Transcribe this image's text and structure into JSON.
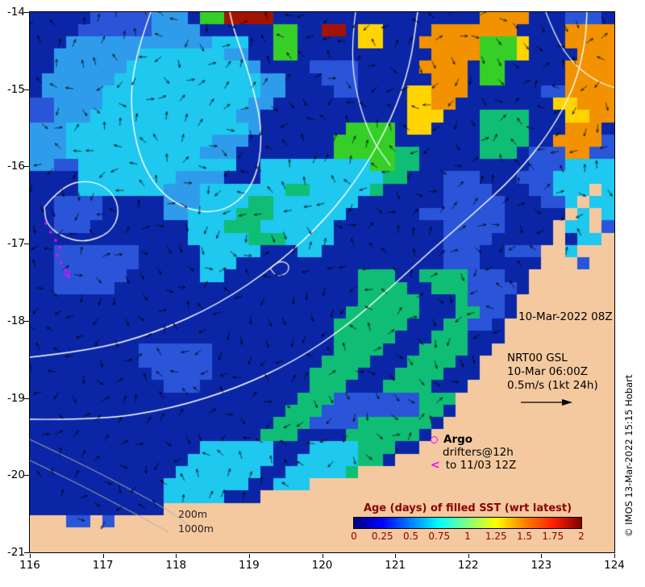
{
  "axes": {
    "x_tick_labels": [
      "116",
      "117",
      "118",
      "119",
      "120",
      "121",
      "122",
      "123",
      "124"
    ],
    "y_tick_labels": [
      "-14",
      "-15",
      "-16",
      "-17",
      "-18",
      "-19",
      "-20",
      "-21"
    ]
  },
  "annotations": {
    "datetime": "10-Mar-2022 08Z",
    "gsl_line1": "NRT00 GSL",
    "gsl_line2": "10-Mar 06:00Z",
    "gsl_line3": "0.5m/s (1kt 24h)",
    "isobath_200": "200m",
    "isobath_1000": "1000m"
  },
  "legend": {
    "argo": "Argo",
    "drifters_line1": "drifters@12h",
    "drifters_line2": "to 11/03 12Z",
    "marker_color": "#ff00ff"
  },
  "colorbar": {
    "title": "Age (days) of filled SST (wrt latest)",
    "tick_labels": [
      "0",
      "0.25",
      "0.5",
      "0.75",
      "1",
      "1.25",
      "1.5",
      "1.75",
      "2"
    ],
    "gradient": [
      "#000080",
      "#0000ff",
      "#0080ff",
      "#00ffff",
      "#80ff80",
      "#ffff00",
      "#ff8000",
      "#ff2000",
      "#800000"
    ],
    "label_color": "#8b0000"
  },
  "copyright": "© IMOS 13-Mar-2022 15:15 Hobart",
  "map": {
    "cols": 48,
    "rows": 44,
    "palette": {
      ".": "#0a26a6",
      "b": "#2a55d8",
      "B": "#2f9ceb",
      "c": "#1ec8ef",
      "g": "#10bd75",
      "G": "#35cf28",
      "y": "#ffd400",
      "o": "#f29200",
      "r": "#a31400",
      "L": "#f4c9a0"
    },
    "grid": [
      ".....bbbbbBBB.GGrrrr.................oooo...bbb.",
      "....bbbbbbBBBB......GG..rr.yy....ooooooo....oooo",
      "...BBBBBBBBBBBBccc..GG.....yy...oooooGGGy...oooo",
      "..BBBBBBBcccccccBB..GG...........ooooGGGy....ooo",
      "..BBBBBBccccccccccB....bbbb.....oooo.GG.....oooo",
      ".BBBBBBccccccccccccBB...bbb......ooo.GG.....oooo",
      ".BBBBBcccccccccccccBB....bb....yyooo......bboooo",
      "bbBBBBccccccccccccBB...........yyoo........yyooo",
      "bbBBBccccccccccccBB............yyy...gggg...yyoo",
      "BBBcccccccccccccccB.......GGGG.yy....gggg...ooo.",
      "BBBccccccccccccBBB.......GGGGG.......gggg..oooob",
      "BBBcccccccccccBBB........GGGGGgg.....ggg.bbboobb",
      "BBbbccccccccccccc..cccccccccGGgg.........bbbcccc",
      "....ccccccccBBBB...ccccccccccgg...bbb...bbbccccc",
      "....cccccccBBBcccccccggcccccg.....bbbb...bbcccLc",
      "..bbbb.....BBBccccggccccccc.......bbbbb...bbcLcc",
      "..bbbb.....BBccccgggcccccc......bbbbbbb.....LcLc",
      "..bbb........cccgggcccccc.........bbbbb....LccLb",
      ".............cccccgggcccc.........bbbb.....L.ccL",
      "..bbbbbbb.....ccccc...cc..........bbb..bbbLLcLLL",
      "..bbbbbbb.....ccc.................bbb.....LLLbLL",
      "..bbbbbb......cc...........ggg..ggggbbb..LLLLLLL",
      "..bbbbb....................gggg..gggbbbb.LLLLLLL",
      "...........................ggggg...gbbb.LLLLLLLL",
      "..........................gggggg...ggbb.LLLLLLLL",
      ".........................gggggg...ggbb.LLLLLLLLL",
      ".........................ggggg...ggg...LLLLLLLLL",
      ".........bbbbbb..........gggg...gggg..LLLLLLLLLL",
      ".........bbbbbb.........gggg...gggg..LLLLLLLLLLL",
      "..........bbbbb........gggg...gggg...LLLLLLLLLLL",
      "...........bbb.........ggg...gggg...LLLLLLLLLLLL",
      "......................gggbbbbbbbgggLLLLLLLLLLLLL",
      ".....................gggbbbbbbbbgg.LLLLLLLLLLLLL",
      "....................gggbbbbgggggg.LLLLLLLLLLLLLL",
      "...................ggg....gggggg.LLLLLLLLLLLLLLL",
      "..............cccccc...ccccggg..LLLLLLLLLLLLLLLL",
      ".............ccccccc..cccccgg.LLLLLLLLLLLLLLLLLL",
      "............ccccccc..cccccgLLLLLLLLLLLLLLLLLLLLL",
      "...........ccccccc..cccLLLLLLLLLLLLLLLLLLLLLLLLL",
      "...........ccccc...LLLLLLLLLLLLLLLLLLLLLLLLLLLLL",
      "...........LLLLLLLLLLLLLLLLLLLLLLLLLLLLLLLLLLLLL",
      "LLLbbLbLLLLLLLLLLLLLLLLLLLLLLLLLLLLLLLLLLLLLLLLL",
      "LLLLLLLLLLLLLLLLLLLLLLLLLLLLLLLLLLLLLLLLLLLLLLLL",
      "LLLLLLLLLLLLLLLLLLLLLLLLLLLLLLLLLLLLLLLLLLLLLLLL",
      "LLLLLLLLLLLLLLLLLLLLLLLLLLLLLLLLLLLLLLLLLLLLLLLL"
    ],
    "contours": [
      {
        "color": "#ffffff",
        "width": 1.4,
        "points": [
          [
            150,
            0
          ],
          [
            130,
            55
          ],
          [
            124,
            125
          ],
          [
            140,
            195
          ],
          [
            178,
            240
          ],
          [
            235,
            252
          ],
          [
            278,
            218
          ],
          [
            290,
            152
          ],
          [
            274,
            82
          ],
          [
            253,
            22
          ],
          [
            248,
            0
          ]
        ]
      },
      {
        "color": "#ffffff",
        "width": 1.4,
        "points": [
          [
            18,
            242
          ],
          [
            40,
            215
          ],
          [
            75,
            208
          ],
          [
            102,
            222
          ],
          [
            112,
            248
          ],
          [
            100,
            274
          ],
          [
            68,
            286
          ],
          [
            38,
            278
          ],
          [
            20,
            262
          ],
          [
            18,
            242
          ]
        ]
      },
      {
        "color": "#ffffff",
        "width": 1.4,
        "points": [
          [
            0,
            428
          ],
          [
            75,
            420
          ],
          [
            155,
            398
          ],
          [
            235,
            362
          ],
          [
            308,
            312
          ],
          [
            368,
            256
          ],
          [
            414,
            196
          ],
          [
            449,
            132
          ],
          [
            472,
            66
          ],
          [
            481,
            0
          ]
        ]
      },
      {
        "color": "#ffffff",
        "width": 1.4,
        "points": [
          [
            0,
            505
          ],
          [
            85,
            506
          ],
          [
            175,
            492
          ],
          [
            258,
            466
          ],
          [
            330,
            432
          ],
          [
            392,
            390
          ],
          [
            445,
            344
          ],
          [
            495,
            298
          ],
          [
            548,
            252
          ],
          [
            602,
            203
          ],
          [
            646,
            148
          ],
          [
            676,
            92
          ],
          [
            689,
            38
          ],
          [
            691,
            0
          ]
        ]
      },
      {
        "color": "#ffffff",
        "width": 1.2,
        "points": [
          [
            298,
            318
          ],
          [
            308,
            308
          ],
          [
            322,
            312
          ],
          [
            320,
            324
          ],
          [
            306,
            328
          ],
          [
            298,
            318
          ]
        ]
      },
      {
        "color": "#ffffff",
        "width": 1.2,
        "points": [
          [
            404,
            0
          ],
          [
            398,
            48
          ],
          [
            406,
            108
          ],
          [
            424,
            158
          ],
          [
            447,
            190
          ]
        ]
      },
      {
        "color": "#ffffff",
        "width": 1.2,
        "points": [
          [
            640,
            0
          ],
          [
            654,
            36
          ],
          [
            676,
            66
          ],
          [
            703,
            86
          ],
          [
            726,
            94
          ]
        ]
      }
    ],
    "isobaths": [
      {
        "points": [
          [
            0,
            530
          ],
          [
            55,
            556
          ],
          [
            112,
            585
          ],
          [
            158,
            610
          ],
          [
            182,
            625
          ],
          [
            196,
            636
          ]
        ]
      },
      {
        "points": [
          [
            0,
            556
          ],
          [
            50,
            580
          ],
          [
            100,
            606
          ],
          [
            145,
            630
          ],
          [
            172,
            645
          ]
        ]
      }
    ],
    "isobath_color": "#b0b0b0",
    "drifter_track": {
      "color": "#ff00ff",
      "points": [
        [
          20,
          262
        ],
        [
          26,
          273
        ],
        [
          32,
          283
        ],
        [
          37,
          292
        ],
        [
          34,
          302
        ],
        [
          39,
          311
        ],
        [
          44,
          320
        ],
        [
          48,
          328
        ]
      ]
    },
    "arrows": {
      "spacing": 26,
      "length": 9,
      "color": "#000000"
    }
  }
}
